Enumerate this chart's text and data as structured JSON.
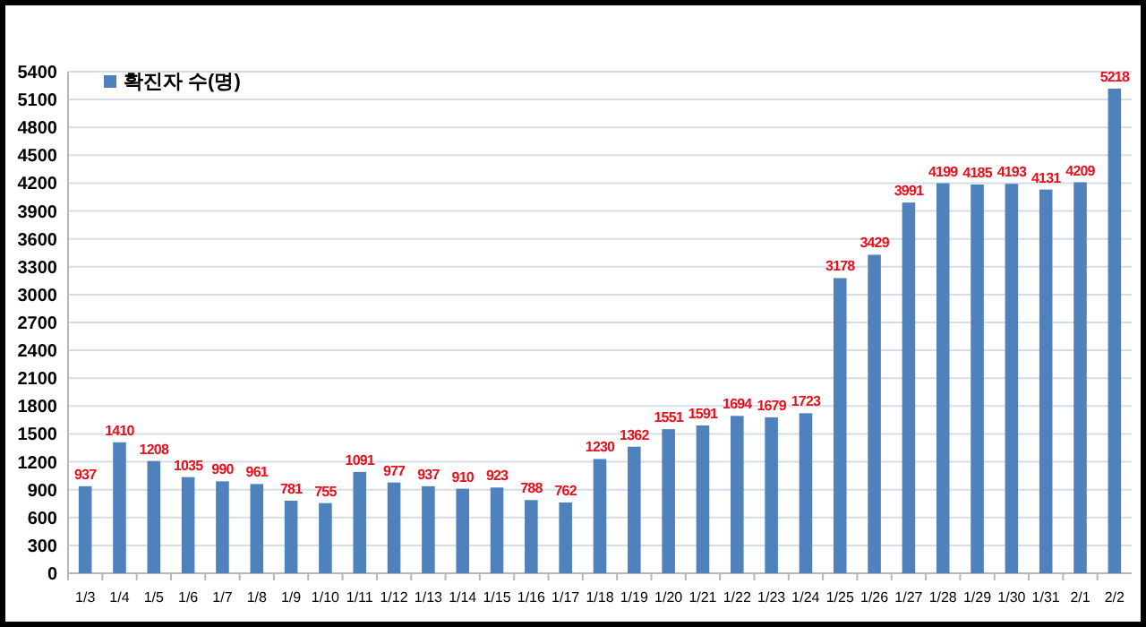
{
  "chart_data": {
    "type": "bar",
    "categories": [
      "1/3",
      "1/4",
      "1/5",
      "1/6",
      "1/7",
      "1/8",
      "1/9",
      "1/10",
      "1/11",
      "1/12",
      "1/13",
      "1/14",
      "1/15",
      "1/16",
      "1/17",
      "1/18",
      "1/19",
      "1/20",
      "1/21",
      "1/22",
      "1/23",
      "1/24",
      "1/25",
      "1/26",
      "1/27",
      "1/28",
      "1/29",
      "1/30",
      "1/31",
      "2/1",
      "2/2"
    ],
    "series": [
      {
        "name": "확진자 수(명)",
        "color": "#4f81bd",
        "values": [
          937,
          1410,
          1208,
          1035,
          990,
          961,
          781,
          755,
          1091,
          977,
          937,
          910,
          923,
          788,
          762,
          1230,
          1362,
          1551,
          1591,
          1694,
          1679,
          1723,
          3178,
          3429,
          3991,
          4199,
          4185,
          4193,
          4131,
          4209,
          5218
        ]
      }
    ],
    "ylim": [
      0,
      5400
    ],
    "yticks": [
      0,
      300,
      600,
      900,
      1200,
      1500,
      1800,
      2100,
      2400,
      2700,
      3000,
      3300,
      3600,
      3900,
      4200,
      4500,
      4800,
      5100,
      5400
    ],
    "grid": "y",
    "legend": "top left",
    "data_labels": true
  }
}
